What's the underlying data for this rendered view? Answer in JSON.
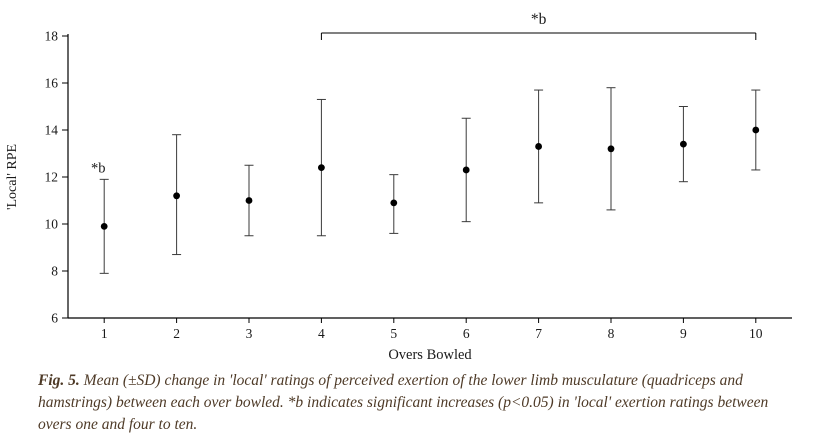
{
  "chart_data": {
    "type": "scatter",
    "title": "",
    "xlabel": "Overs Bowled",
    "ylabel": "'Local' RPE",
    "x": [
      1,
      2,
      3,
      4,
      5,
      6,
      7,
      8,
      9,
      10
    ],
    "series": [
      {
        "name": "Mean 'Local' RPE",
        "values": [
          9.9,
          11.2,
          11.0,
          12.4,
          10.9,
          12.3,
          13.3,
          13.2,
          13.4,
          14.0
        ]
      }
    ],
    "error_upper": [
      11.9,
      13.8,
      12.5,
      15.3,
      12.1,
      14.5,
      15.7,
      15.8,
      15.0,
      15.7
    ],
    "error_lower": [
      7.9,
      8.7,
      9.5,
      9.5,
      9.6,
      10.1,
      10.9,
      10.6,
      11.8,
      12.3
    ],
    "ylim": [
      6,
      18
    ],
    "yticks": [
      6,
      8,
      10,
      12,
      14,
      16,
      18
    ],
    "grid": false,
    "legend": "none",
    "marker_color": "#000000",
    "errorbar_color": "#3a3a3a",
    "annotations": {
      "point1_label": "*b",
      "bracket_label": "*b",
      "bracket_from_x": 4,
      "bracket_to_x": 10,
      "bracket_y": 18
    }
  },
  "caption": {
    "label": "Fig. 5.",
    "text": " Mean (±SD) change in 'local' ratings of perceived exertion of the lower limb musculature (quadriceps and hamstrings) between each over bowled. *b indicates significant increases (p<0.05) in 'local' exertion ratings between overs one and four to ten."
  }
}
